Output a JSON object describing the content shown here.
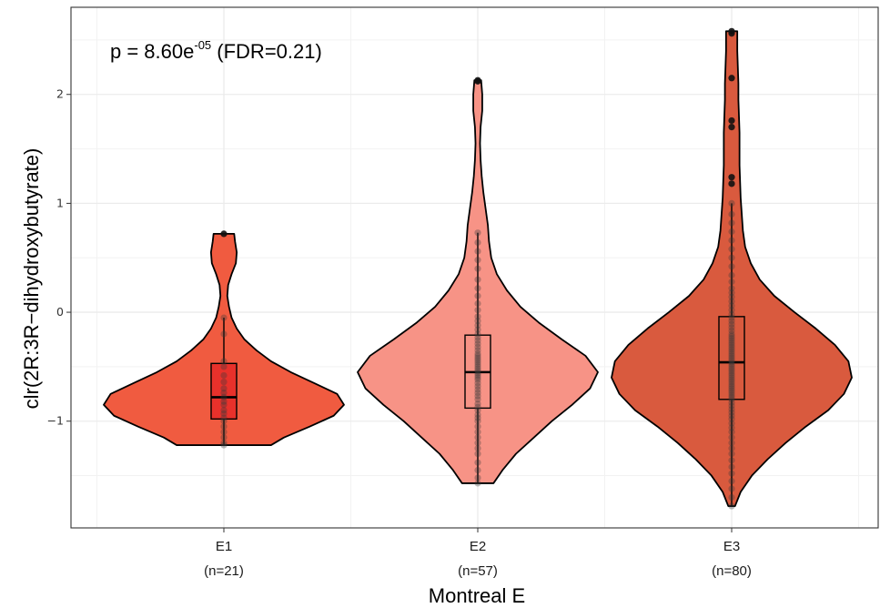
{
  "chart_data": {
    "type": "violin",
    "title": "",
    "xlabel": "Montreal E",
    "ylabel": "clr(2R:3R−dihydroxybutyrate)",
    "ylim": [
      -1.98,
      2.8
    ],
    "yticks": [
      -1,
      0,
      1,
      2
    ],
    "ytick_labels": [
      "−1",
      "0",
      "1",
      "2"
    ],
    "grid": true,
    "annotation": {
      "prefix": "p = 8.60e",
      "exponent": "-05",
      "suffix": " (FDR=0.21)"
    },
    "groups": [
      {
        "category": "E1",
        "n_label": "(n=21)",
        "fill": "#F05B40",
        "box_fill": "#E8312B",
        "range": [
          -1.22,
          0.72
        ],
        "box": {
          "q1": -0.98,
          "median": -0.78,
          "q3": -0.47,
          "whisker_low": -1.22,
          "whisker_high": -0.05
        },
        "density": [
          [
            -1.22,
            0.55
          ],
          [
            -1.15,
            0.7
          ],
          [
            -1.05,
            1.0
          ],
          [
            -0.95,
            1.28
          ],
          [
            -0.85,
            1.4
          ],
          [
            -0.75,
            1.32
          ],
          [
            -0.65,
            1.05
          ],
          [
            -0.55,
            0.78
          ],
          [
            -0.45,
            0.55
          ],
          [
            -0.35,
            0.38
          ],
          [
            -0.25,
            0.24
          ],
          [
            -0.15,
            0.15
          ],
          [
            -0.05,
            0.09
          ],
          [
            0.05,
            0.06
          ],
          [
            0.15,
            0.04
          ],
          [
            0.25,
            0.05
          ],
          [
            0.35,
            0.09
          ],
          [
            0.45,
            0.14
          ],
          [
            0.55,
            0.15
          ],
          [
            0.65,
            0.13
          ],
          [
            0.72,
            0.12
          ]
        ],
        "points": [
          -1.22,
          -1.2,
          -1.15,
          -1.1,
          -1.05,
          -1.0,
          -0.97,
          -0.93,
          -0.9,
          -0.85,
          -0.82,
          -0.78,
          -0.74,
          -0.7,
          -0.64,
          -0.58,
          -0.5,
          -0.45,
          -0.2,
          -0.05,
          0.72
        ]
      },
      {
        "category": "E2",
        "n_label": "(n=57)",
        "fill": "#F79386",
        "box_fill": "#F79386",
        "range": [
          -1.57,
          2.13
        ],
        "box": {
          "q1": -0.88,
          "median": -0.55,
          "q3": -0.21,
          "whisker_low": -1.57,
          "whisker_high": 0.73
        },
        "density": [
          [
            -1.57,
            0.14
          ],
          [
            -1.45,
            0.22
          ],
          [
            -1.3,
            0.34
          ],
          [
            -1.15,
            0.5
          ],
          [
            -1.0,
            0.66
          ],
          [
            -0.85,
            0.84
          ],
          [
            -0.7,
            1.0
          ],
          [
            -0.55,
            1.07
          ],
          [
            -0.4,
            0.96
          ],
          [
            -0.25,
            0.75
          ],
          [
            -0.1,
            0.55
          ],
          [
            0.05,
            0.38
          ],
          [
            0.2,
            0.26
          ],
          [
            0.35,
            0.17
          ],
          [
            0.5,
            0.12
          ],
          [
            0.65,
            0.1
          ],
          [
            0.8,
            0.09
          ],
          [
            0.95,
            0.07
          ],
          [
            1.1,
            0.05
          ],
          [
            1.25,
            0.035
          ],
          [
            1.4,
            0.025
          ],
          [
            1.55,
            0.02
          ],
          [
            1.7,
            0.025
          ],
          [
            1.85,
            0.04
          ],
          [
            2.0,
            0.04
          ],
          [
            2.13,
            0.03
          ]
        ],
        "points": [
          -1.57,
          -1.52,
          -1.45,
          -1.38,
          -1.3,
          -1.25,
          -1.2,
          -1.15,
          -1.1,
          -1.05,
          -1.0,
          -0.97,
          -0.94,
          -0.9,
          -0.87,
          -0.84,
          -0.8,
          -0.77,
          -0.74,
          -0.71,
          -0.68,
          -0.65,
          -0.62,
          -0.6,
          -0.58,
          -0.56,
          -0.54,
          -0.52,
          -0.5,
          -0.48,
          -0.46,
          -0.44,
          -0.42,
          -0.4,
          -0.38,
          -0.35,
          -0.32,
          -0.29,
          -0.26,
          -0.23,
          -0.2,
          -0.16,
          -0.12,
          -0.08,
          -0.04,
          0.02,
          0.08,
          0.15,
          0.22,
          0.3,
          0.4,
          0.48,
          0.56,
          0.64,
          0.73,
          2.12,
          2.13
        ]
      },
      {
        "category": "E3",
        "n_label": "(n=80)",
        "fill": "#D95A3E",
        "box_fill": "#D95A3E",
        "range": [
          -1.78,
          2.58
        ],
        "box": {
          "q1": -0.8,
          "median": -0.46,
          "q3": -0.04,
          "whisker_low": -1.78,
          "whisker_high": 1.0
        },
        "density": [
          [
            -1.78,
            0.03
          ],
          [
            -1.65,
            0.08
          ],
          [
            -1.5,
            0.18
          ],
          [
            -1.35,
            0.32
          ],
          [
            -1.2,
            0.48
          ],
          [
            -1.05,
            0.66
          ],
          [
            -0.9,
            0.86
          ],
          [
            -0.75,
            1.0
          ],
          [
            -0.6,
            1.07
          ],
          [
            -0.45,
            1.04
          ],
          [
            -0.3,
            0.92
          ],
          [
            -0.15,
            0.75
          ],
          [
            0.0,
            0.56
          ],
          [
            0.15,
            0.38
          ],
          [
            0.3,
            0.25
          ],
          [
            0.45,
            0.17
          ],
          [
            0.6,
            0.12
          ],
          [
            0.75,
            0.1
          ],
          [
            0.9,
            0.09
          ],
          [
            1.05,
            0.08
          ],
          [
            1.2,
            0.075
          ],
          [
            1.35,
            0.07
          ],
          [
            1.5,
            0.07
          ],
          [
            1.65,
            0.07
          ],
          [
            1.8,
            0.065
          ],
          [
            1.95,
            0.06
          ],
          [
            2.1,
            0.06
          ],
          [
            2.25,
            0.055
          ],
          [
            2.4,
            0.05
          ],
          [
            2.58,
            0.05
          ]
        ],
        "points": [
          -1.78,
          -1.7,
          -1.62,
          -1.55,
          -1.48,
          -1.42,
          -1.36,
          -1.3,
          -1.25,
          -1.2,
          -1.15,
          -1.1,
          -1.06,
          -1.02,
          -0.98,
          -0.95,
          -0.92,
          -0.89,
          -0.86,
          -0.83,
          -0.8,
          -0.78,
          -0.76,
          -0.74,
          -0.72,
          -0.7,
          -0.68,
          -0.66,
          -0.64,
          -0.62,
          -0.6,
          -0.58,
          -0.56,
          -0.54,
          -0.52,
          -0.5,
          -0.48,
          -0.46,
          -0.44,
          -0.42,
          -0.4,
          -0.38,
          -0.36,
          -0.34,
          -0.32,
          -0.3,
          -0.28,
          -0.26,
          -0.24,
          -0.22,
          -0.2,
          -0.17,
          -0.14,
          -0.11,
          -0.08,
          -0.05,
          -0.02,
          0.02,
          0.06,
          0.1,
          0.14,
          0.18,
          0.22,
          0.28,
          0.34,
          0.42,
          0.5,
          0.58,
          0.66,
          0.74,
          0.82,
          0.9,
          1.0,
          1.18,
          1.24,
          1.7,
          1.76,
          2.15,
          2.56,
          2.58
        ]
      }
    ]
  }
}
